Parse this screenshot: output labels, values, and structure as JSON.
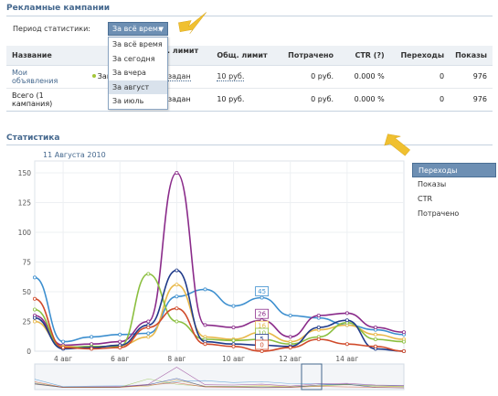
{
  "campaigns": {
    "title": "Рекламные кампании",
    "period_label": "Период статистики:",
    "period_selected": "За всё время",
    "period_options": [
      "За всё время",
      "За сегодня",
      "За вчера",
      "За август",
      "За июль"
    ],
    "period_active_index": 3,
    "columns": [
      "Название",
      "",
      "Дн. лимит (?)",
      "Общ. лимит",
      "Потрачено",
      "CTR (?)",
      "Переходы",
      "Показы"
    ],
    "rows": [
      {
        "name": "Мои объявления",
        "status": "Запущена",
        "day_limit": "Не задан",
        "total_limit": "10 руб.",
        "spent": "0 руб.",
        "ctr": "0.000 %",
        "clicks": "0",
        "views": "976"
      },
      {
        "name": "Всего (1 кампания)",
        "status": "",
        "day_limit": "Не задан",
        "total_limit": "10 руб.",
        "spent": "0 руб.",
        "ctr": "0.000 %",
        "clicks": "0",
        "views": "976"
      }
    ]
  },
  "statistics": {
    "title": "Статистика",
    "date": "11 Августа 2010",
    "menu": [
      "Переходы",
      "Показы",
      "CTR",
      "Потрачено"
    ],
    "menu_active_index": 0
  },
  "colors": {
    "accent": "#45688e",
    "active_bg": "#6d8fb3",
    "pointer": "#f0c030"
  },
  "chart_data": {
    "type": "line",
    "x": [
      "3 авг",
      "4 авг",
      "5 авг",
      "6 авг",
      "7 авг",
      "8 авг",
      "9 авг",
      "10 авг",
      "11 авг",
      "12 авг",
      "13 авг",
      "14 авг",
      "15 авг",
      "16 авг"
    ],
    "x_ticks": [
      "4 авг",
      "6 авг",
      "8 авг",
      "10 авг",
      "12 авг",
      "14 авг"
    ],
    "y_ticks": [
      "0",
      "25",
      "50",
      "75",
      "100",
      "125",
      "150"
    ],
    "ylim": [
      0,
      160
    ],
    "grid": true,
    "series": [
      {
        "color": "#3d8fcf",
        "values": [
          62,
          8,
          12,
          14,
          15,
          46,
          52,
          38,
          45,
          30,
          28,
          22,
          18,
          14
        ],
        "label_value": 45,
        "label_index": 8
      },
      {
        "color": "#8a2b8a",
        "values": [
          30,
          5,
          6,
          8,
          25,
          150,
          22,
          20,
          26,
          12,
          30,
          32,
          20,
          16
        ],
        "label_value": 26,
        "label_index": 8
      },
      {
        "color": "#e8b84a",
        "values": [
          25,
          4,
          3,
          5,
          12,
          56,
          12,
          10,
          16,
          8,
          18,
          22,
          14,
          10
        ],
        "label_value": 16,
        "label_index": 8
      },
      {
        "color": "#8bbf3f",
        "values": [
          35,
          3,
          4,
          4,
          65,
          25,
          10,
          9,
          10,
          6,
          12,
          24,
          10,
          8
        ],
        "label_value": 10,
        "label_index": 8
      },
      {
        "color": "#1f3a8a",
        "values": [
          28,
          2,
          3,
          5,
          22,
          68,
          8,
          6,
          5,
          4,
          20,
          26,
          2,
          0
        ],
        "label_value": 5,
        "label_index": 8
      },
      {
        "color": "#d04a2a",
        "values": [
          44,
          3,
          2,
          3,
          20,
          36,
          6,
          4,
          0,
          3,
          10,
          6,
          4,
          0
        ],
        "label_value": 0,
        "label_index": 8
      }
    ]
  }
}
